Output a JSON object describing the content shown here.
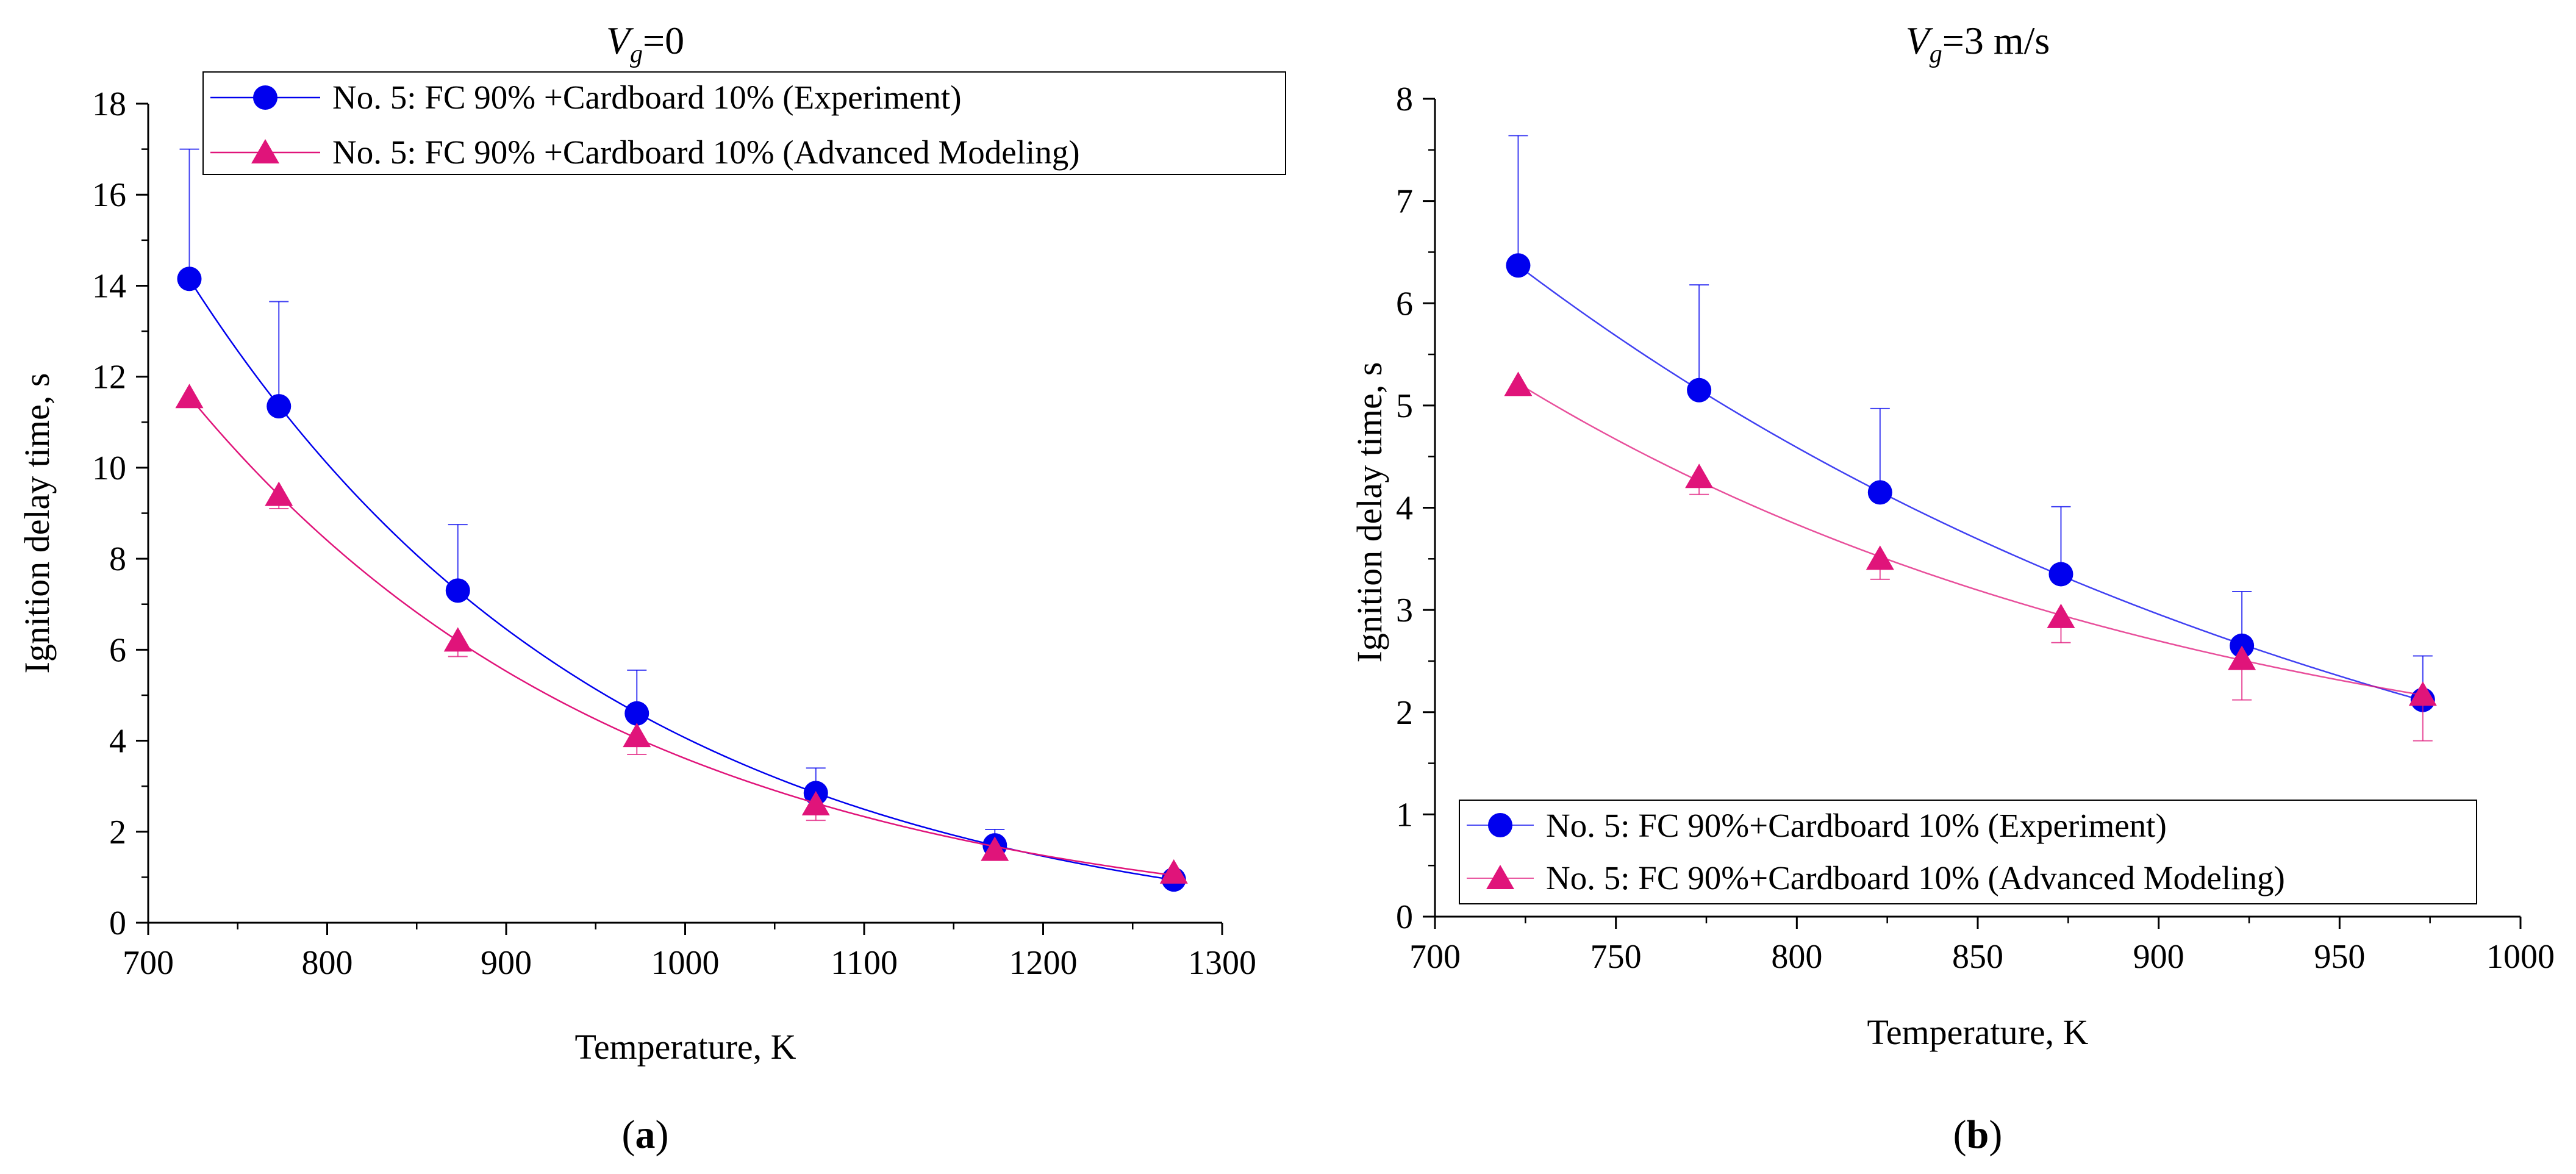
{
  "chart_data": [
    {
      "type": "line",
      "title_var": "V",
      "title_sub": "g",
      "title_rest": "=0",
      "caption_open": "(",
      "caption_letter": "a",
      "caption_close": ")",
      "xlabel": "Temperature, K",
      "ylabel": "Ignition delay time, s",
      "xlim": [
        700,
        1300
      ],
      "ylim": [
        0,
        18
      ],
      "xticks": [
        700,
        800,
        900,
        1000,
        1100,
        1200,
        1300
      ],
      "yticks": [
        0,
        2,
        4,
        6,
        8,
        10,
        12,
        14,
        16,
        18
      ],
      "legend_position": "top",
      "series": [
        {
          "name": "No. 5: FC 90% +Cardboard 10% (Experiment)",
          "marker": "circle",
          "color": "#0000ee",
          "x": [
            723,
            773,
            873,
            973,
            1073,
            1173,
            1273
          ],
          "y": [
            14.15,
            11.35,
            7.3,
            4.6,
            2.85,
            1.7,
            0.95
          ],
          "err_up": [
            2.85,
            2.3,
            1.45,
            0.95,
            0.55,
            0.35,
            0.15
          ]
        },
        {
          "name": "No. 5: FC 90% +Cardboard 10% (Advanced Modeling)",
          "marker": "triangle",
          "color": "#e0147a",
          "x": [
            723,
            773,
            873,
            973,
            1073,
            1173,
            1273
          ],
          "y": [
            11.55,
            9.4,
            6.2,
            4.1,
            2.6,
            1.6,
            1.1
          ],
          "err_down": [
            0.0,
            0.3,
            0.35,
            0.4,
            0.35,
            0.2,
            0.0
          ]
        }
      ]
    },
    {
      "type": "line",
      "title_var": "V",
      "title_sub": "g",
      "title_rest": "=3 m/s",
      "caption_open": "(",
      "caption_letter": "b",
      "caption_close": ")",
      "xlabel": "Temperature, K",
      "ylabel": "Ignition delay time, s",
      "xlim": [
        700,
        1000
      ],
      "ylim": [
        0,
        8
      ],
      "xticks": [
        700,
        750,
        800,
        850,
        900,
        950,
        1000
      ],
      "yticks": [
        0,
        1,
        2,
        3,
        4,
        5,
        6,
        7,
        8
      ],
      "legend_position": "bottom",
      "series": [
        {
          "name": "No. 5: FC 90%+Cardboard 10% (Experiment)",
          "marker": "circle",
          "color": "#0000ee",
          "x": [
            723,
            773,
            823,
            873,
            923,
            973
          ],
          "y": [
            6.37,
            5.15,
            4.15,
            3.35,
            2.65,
            2.12
          ],
          "err_up": [
            1.27,
            1.03,
            0.82,
            0.66,
            0.53,
            0.43
          ]
        },
        {
          "name": "No. 5: FC 90%+Cardboard 10% (Advanced Modeling)",
          "marker": "triangle",
          "color": "#e0147a",
          "x": [
            723,
            773,
            823,
            873,
            923,
            973
          ],
          "y": [
            5.2,
            4.3,
            3.5,
            2.93,
            2.52,
            2.17
          ],
          "err_down": [
            0.1,
            0.17,
            0.2,
            0.25,
            0.4,
            0.45
          ]
        }
      ]
    }
  ]
}
